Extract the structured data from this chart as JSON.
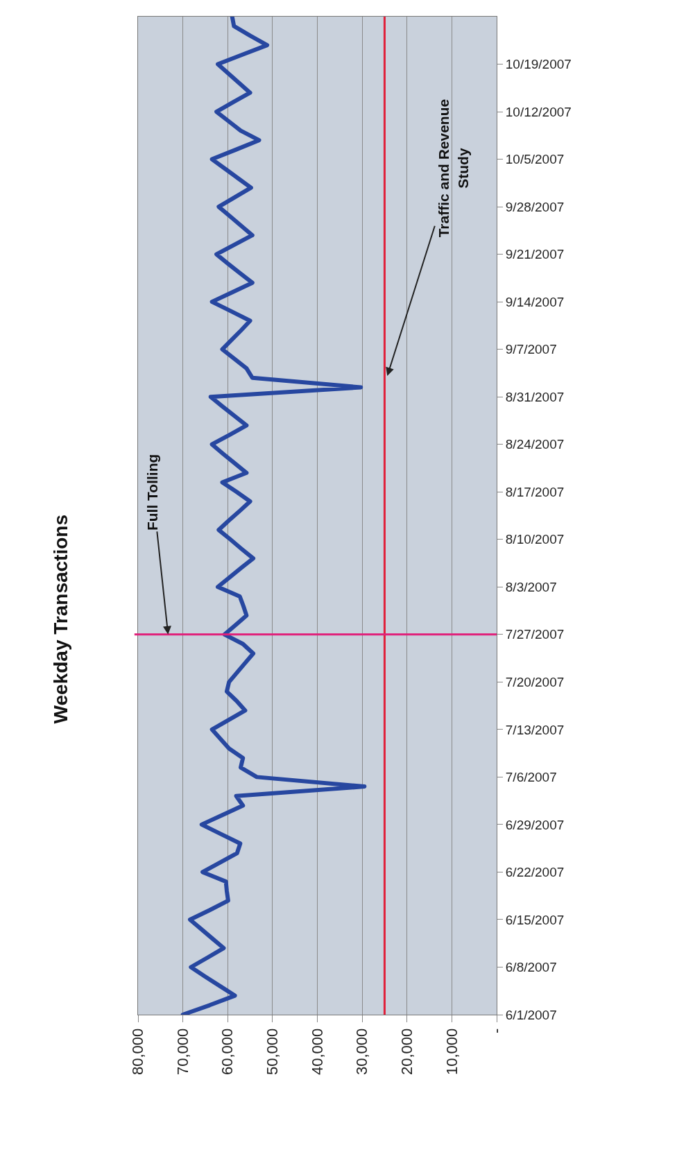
{
  "chart_data": {
    "type": "line",
    "title": "Weekday Transactions",
    "orientation": "horizontal",
    "categories": [
      null,
      null,
      null,
      null,
      null,
      "10/19/2007",
      null,
      null,
      null,
      null,
      "10/12/2007",
      null,
      null,
      null,
      null,
      "10/5/2007",
      null,
      null,
      null,
      null,
      "9/28/2007",
      null,
      null,
      null,
      null,
      "9/21/2007",
      null,
      null,
      null,
      null,
      "9/14/2007",
      null,
      null,
      null,
      null,
      "9/7/2007",
      null,
      null,
      null,
      null,
      "8/31/2007",
      null,
      null,
      null,
      null,
      "8/24/2007",
      null,
      null,
      null,
      null,
      "8/17/2007",
      null,
      null,
      null,
      null,
      "8/10/2007",
      null,
      null,
      null,
      null,
      "8/3/2007",
      null,
      null,
      null,
      null,
      "7/27/2007",
      null,
      null,
      null,
      null,
      "7/20/2007",
      null,
      null,
      null,
      null,
      "7/13/2007",
      null,
      null,
      null,
      null,
      "7/6/2007",
      null,
      null,
      null,
      null,
      "6/29/2007",
      null,
      null,
      null,
      null,
      "6/22/2007",
      null,
      null,
      null,
      null,
      "6/15/2007",
      null,
      null,
      null,
      null,
      "6/8/2007",
      null,
      null,
      null,
      null,
      "6/1/2007"
    ],
    "series": [
      {
        "color": "#2747a0",
        "values": [
          59000,
          58600,
          55000,
          51200,
          56700,
          62200,
          59800,
          57400,
          55000,
          58800,
          62500,
          59800,
          57100,
          53000,
          58200,
          63500,
          60600,
          57700,
          54800,
          58400,
          62000,
          59500,
          57000,
          54500,
          58500,
          62500,
          59900,
          57200,
          54500,
          59000,
          63500,
          59200,
          55000,
          57000,
          59100,
          61200,
          58500,
          55800,
          54500,
          30300,
          63800,
          61200,
          58500,
          55800,
          59600,
          63500,
          61000,
          58400,
          55800,
          61200,
          58000,
          55000,
          57300,
          59700,
          62000,
          59400,
          56900,
          54300,
          57000,
          59600,
          62200,
          57300,
          56500,
          55800,
          58200,
          60700,
          56600,
          54300,
          56100,
          57900,
          59700,
          60200,
          58000,
          56100,
          59800,
          63500,
          61600,
          59700,
          56600,
          57100,
          53500,
          29500,
          58100,
          56600,
          61200,
          65800,
          61500,
          57200,
          57900,
          61700,
          65600,
          60400,
          60200,
          59900,
          64000,
          68400,
          65900,
          63400,
          60900,
          64500,
          68200,
          65000,
          61700,
          58400,
          64000,
          70000
        ]
      }
    ],
    "xlim": [
      80000,
      0
    ],
    "xticks": [
      {
        "value": 80000,
        "label": "80,000"
      },
      {
        "value": 70000,
        "label": "70,000"
      },
      {
        "value": 60000,
        "label": "60,000"
      },
      {
        "value": 50000,
        "label": "50,000"
      },
      {
        "value": 40000,
        "label": "40,000"
      },
      {
        "value": 30000,
        "label": "30,000"
      },
      {
        "value": 20000,
        "label": "20,000"
      },
      {
        "value": 10000,
        "label": "10,000"
      },
      {
        "value": 0,
        "label": "-"
      }
    ],
    "grid": "x",
    "ref_lines": [
      {
        "axis": "x",
        "value": 25000,
        "color": "#e0203a"
      },
      {
        "axis": "y",
        "value": "7/27/2007",
        "color": "#e0207a"
      }
    ],
    "annotations": [
      {
        "text": "Full Tolling",
        "x": 73300,
        "y": "7/27/2007"
      },
      "Traffic and Revenue Study"
    ]
  }
}
